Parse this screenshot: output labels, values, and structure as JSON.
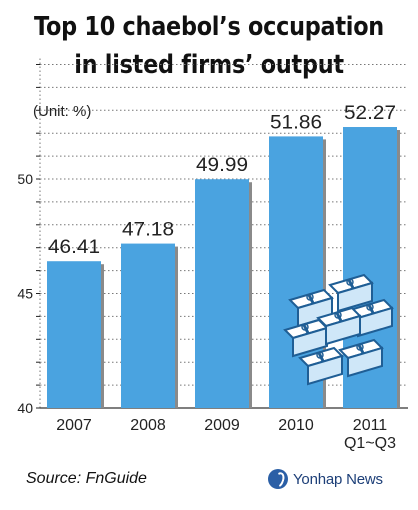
{
  "title_line1": "Top 10 chaebol’s occupation",
  "title_line2": "in listed firms’ output",
  "unit_label": "(Unit: %)",
  "source": "Source: FnGuide",
  "credit": "Yonhap News",
  "colors": {
    "bar": "#4aa3e0",
    "bar_shadow": "#8a8a8a",
    "text": "#111111"
  },
  "chart_data": {
    "type": "bar",
    "title": "Top 10 chaebol’s occupation in listed firms’ output",
    "unit": "(Unit: %)",
    "categories": [
      [
        "2007"
      ],
      [
        "2008"
      ],
      [
        "2009"
      ],
      [
        "2010"
      ],
      [
        "2011",
        "Q1~Q3"
      ]
    ],
    "values": [
      46.41,
      47.18,
      49.99,
      51.86,
      52.27
    ],
    "value_labels": [
      "46.41",
      "47.18",
      "49.99",
      "51.86",
      "52.27"
    ],
    "yticks": [
      40,
      45,
      50
    ],
    "ylim": [
      40,
      55
    ],
    "grid": "dotted horizontal",
    "legend": "none"
  }
}
